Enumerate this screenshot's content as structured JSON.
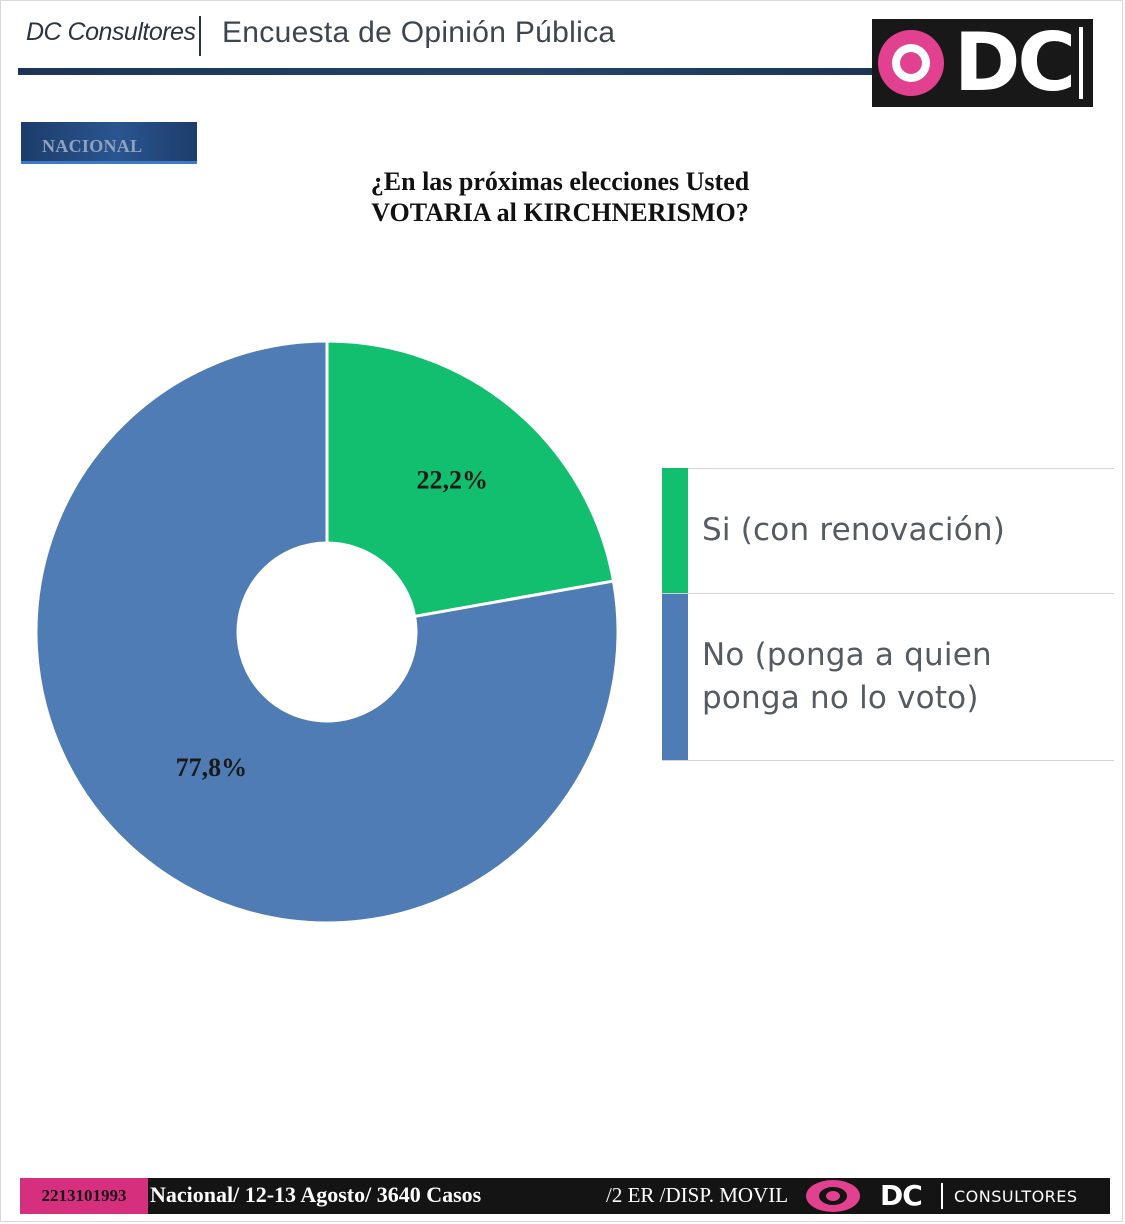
{
  "header": {
    "brand": "DC Consultores",
    "title": "Encuesta de Opinión Pública",
    "logo_text": "DC"
  },
  "badge": "NACIONAL",
  "question": {
    "line1": "¿En las próximas elecciones Usted",
    "line2": "VOTARIA al KIRCHNERISMO?"
  },
  "colors": {
    "si": "#11bf6e",
    "no": "#4f7cb5",
    "brand_pink": "#e2418f",
    "navy": "#1b3558"
  },
  "chart_data": {
    "type": "pie",
    "donut": true,
    "categories": [
      "Si (con renovación)",
      "No (ponga a quien ponga no lo voto)"
    ],
    "values": [
      22.2,
      77.8
    ],
    "value_labels": [
      "22,2%",
      "77,8%"
    ],
    "legend_position": "right"
  },
  "legend": {
    "si": {
      "line1": "Si (con renovación)"
    },
    "no": {
      "line1": "No (ponga a quien",
      "line2": "ponga no lo voto)"
    }
  },
  "footer": {
    "phone": "2213101993",
    "info": "Nacional/ 12-13 Agosto/ 3640 Casos",
    "extra": "/2 ER /DISP. MOVIL",
    "logo_dc": "DC",
    "logo_consultores": "CONSULTORES"
  }
}
